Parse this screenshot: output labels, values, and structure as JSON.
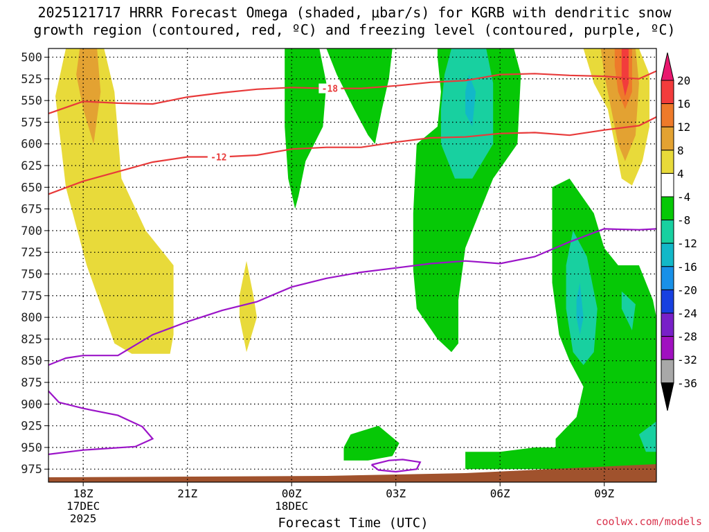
{
  "title": {
    "line1": "2025121717 HRRR Forecast Omega (shaded, μbar/s) for KGRB with dendritic snow",
    "line2": "growth region (contoured, red, ºC) and freezing level (contoured, purple, ºC)"
  },
  "credit": "coolwx.com/models",
  "chart_data": {
    "type": "heatmap",
    "xlabel": "Forecast Time (UTC)",
    "x_ticks": [
      {
        "hour": 1,
        "label": "18Z",
        "sub": [
          "17DEC",
          "2025"
        ]
      },
      {
        "hour": 4,
        "label": "21Z",
        "sub": []
      },
      {
        "hour": 7,
        "label": "00Z",
        "sub": [
          "18DEC"
        ]
      },
      {
        "hour": 10,
        "label": "03Z",
        "sub": []
      },
      {
        "hour": 13,
        "label": "06Z",
        "sub": []
      },
      {
        "hour": 16,
        "label": "09Z",
        "sub": []
      }
    ],
    "x_range_hours": [
      0,
      17.5
    ],
    "y_label": "",
    "y_axis": "pressure (hPa), inverted",
    "y_ticks": [
      500,
      525,
      550,
      575,
      600,
      625,
      650,
      675,
      700,
      725,
      750,
      775,
      800,
      825,
      850,
      875,
      900,
      925,
      950,
      975
    ],
    "y_range": [
      490,
      990
    ],
    "grid": "dotted",
    "colorbar": {
      "units": "μbar/s",
      "labels": [
        "20",
        "16",
        "12",
        "8",
        "4",
        "-4",
        "-8",
        "-12",
        "-16",
        "-20",
        "-24",
        "-28",
        "-32",
        "-36"
      ],
      "bins": [
        {
          "range": ">20",
          "color": "#e8186e"
        },
        {
          "range": "16 to 20",
          "color": "#f23c3c"
        },
        {
          "range": "12 to 16",
          "color": "#ee7a2a"
        },
        {
          "range": "8 to 12",
          "color": "#e3a232"
        },
        {
          "range": "4 to 8",
          "color": "#e8da3a"
        },
        {
          "range": "-4 to 4",
          "color": "#ffffff"
        },
        {
          "range": "-8 to -4",
          "color": "#06c806"
        },
        {
          "range": "-12 to -8",
          "color": "#18d0a0"
        },
        {
          "range": "-16 to -12",
          "color": "#12b8c8"
        },
        {
          "range": "-20 to -16",
          "color": "#1890e8"
        },
        {
          "range": "-24 to -20",
          "color": "#1840e0"
        },
        {
          "range": "-28 to -24",
          "color": "#7820c8"
        },
        {
          "range": "-32 to -28",
          "color": "#a010c0"
        },
        {
          "range": "-36 to -32",
          "color": "#a8a8a8"
        },
        {
          "range": "<-36",
          "color": "#000000"
        }
      ]
    },
    "dgz_contours": [
      {
        "label": "-18",
        "color": "#e83a3a",
        "label_hour": 8.1,
        "points": [
          [
            0,
            565
          ],
          [
            1,
            551
          ],
          [
            2,
            553
          ],
          [
            3,
            554
          ],
          [
            4,
            546
          ],
          [
            5,
            541
          ],
          [
            6,
            537
          ],
          [
            7,
            535
          ],
          [
            8,
            536
          ],
          [
            9,
            536
          ],
          [
            10,
            533
          ],
          [
            11,
            529
          ],
          [
            12,
            527
          ],
          [
            13,
            520
          ],
          [
            14,
            519
          ],
          [
            15,
            521
          ],
          [
            16,
            522
          ],
          [
            17,
            525
          ],
          [
            17.5,
            516
          ]
        ]
      },
      {
        "label": "-12",
        "color": "#e83a3a",
        "label_hour": 4.9,
        "points": [
          [
            0,
            658
          ],
          [
            1,
            643
          ],
          [
            2,
            632
          ],
          [
            3,
            621
          ],
          [
            4,
            615
          ],
          [
            5,
            615
          ],
          [
            6,
            613
          ],
          [
            7,
            606
          ],
          [
            8,
            604
          ],
          [
            9,
            604
          ],
          [
            10,
            598
          ],
          [
            11,
            593
          ],
          [
            12,
            592
          ],
          [
            13,
            588
          ],
          [
            14,
            587
          ],
          [
            15,
            590
          ],
          [
            16,
            584
          ],
          [
            17,
            579
          ],
          [
            17.5,
            569
          ]
        ]
      }
    ],
    "freezing_level_contours": [
      {
        "color": "#9b14c8",
        "points": [
          [
            0,
            855
          ],
          [
            0.5,
            847
          ],
          [
            1,
            844
          ],
          [
            2,
            844
          ],
          [
            3,
            820
          ],
          [
            4,
            805
          ],
          [
            5,
            792
          ],
          [
            6,
            782
          ],
          [
            7,
            765
          ],
          [
            8,
            755
          ],
          [
            9,
            748
          ],
          [
            10,
            743
          ],
          [
            11,
            738
          ],
          [
            12,
            735
          ],
          [
            13,
            738
          ],
          [
            14,
            730
          ],
          [
            15,
            713
          ],
          [
            16,
            698
          ],
          [
            17,
            699
          ],
          [
            17.5,
            698
          ]
        ]
      },
      {
        "color": "#9b14c8",
        "points": [
          [
            0,
            885
          ],
          [
            0.3,
            898
          ],
          [
            1,
            905
          ],
          [
            2,
            913
          ],
          [
            2.7,
            926
          ],
          [
            3,
            940
          ],
          [
            2.5,
            949
          ],
          [
            1,
            953
          ],
          [
            0,
            958
          ]
        ]
      },
      {
        "color": "#9b14c8",
        "points": [
          [
            9.3,
            970
          ],
          [
            9.8,
            965
          ],
          [
            10.2,
            964
          ],
          [
            10.7,
            967
          ],
          [
            10.6,
            975
          ],
          [
            10,
            978
          ],
          [
            9.5,
            976
          ],
          [
            9.3,
            970
          ]
        ]
      }
    ],
    "omega_regions": [
      {
        "bin": "4 to 8",
        "points": [
          [
            0.5,
            490
          ],
          [
            1.6,
            490
          ],
          [
            1.9,
            540
          ],
          [
            2.1,
            640
          ],
          [
            2.8,
            700
          ],
          [
            3.6,
            740
          ],
          [
            3.6,
            820
          ],
          [
            3.5,
            842
          ],
          [
            2.4,
            842
          ],
          [
            1.9,
            830
          ],
          [
            1.1,
            740
          ],
          [
            0.5,
            650
          ],
          [
            0.2,
            545
          ]
        ]
      },
      {
        "bin": "8 to 12",
        "points": [
          [
            0.9,
            490
          ],
          [
            1.4,
            490
          ],
          [
            1.5,
            540
          ],
          [
            1.3,
            600
          ],
          [
            1.0,
            560
          ],
          [
            0.8,
            520
          ]
        ]
      },
      {
        "bin": "4 to 8",
        "points": [
          [
            5.7,
            735
          ],
          [
            5.9,
            775
          ],
          [
            6.0,
            800
          ],
          [
            5.7,
            840
          ],
          [
            5.5,
            800
          ],
          [
            5.5,
            775
          ]
        ]
      },
      {
        "bin": "-8 to -4",
        "points": [
          [
            6.8,
            490
          ],
          [
            7.8,
            490
          ],
          [
            8.0,
            530
          ],
          [
            7.9,
            580
          ],
          [
            7.4,
            620
          ],
          [
            7.2,
            660
          ],
          [
            7.1,
            675
          ],
          [
            6.9,
            640
          ],
          [
            6.8,
            580
          ],
          [
            6.8,
            520
          ]
        ]
      },
      {
        "bin": "-8 to -4",
        "points": [
          [
            8.0,
            490
          ],
          [
            9.9,
            490
          ],
          [
            9.8,
            525
          ],
          [
            9.6,
            560
          ],
          [
            9.4,
            600
          ],
          [
            9.2,
            590
          ],
          [
            8.8,
            560
          ],
          [
            8.3,
            520
          ]
        ]
      },
      {
        "bin": "-8 to -4",
        "points": [
          [
            11.2,
            490
          ],
          [
            13.4,
            490
          ],
          [
            13.6,
            520
          ],
          [
            13.5,
            600
          ],
          [
            12.8,
            640
          ],
          [
            12.4,
            680
          ],
          [
            12.0,
            720
          ],
          [
            11.8,
            780
          ],
          [
            11.8,
            830
          ],
          [
            11.6,
            840
          ],
          [
            11.2,
            825
          ],
          [
            10.6,
            790
          ],
          [
            10.5,
            745
          ],
          [
            10.5,
            680
          ],
          [
            10.6,
            600
          ],
          [
            11.2,
            580
          ],
          [
            11.3,
            540
          ],
          [
            11.2,
            500
          ]
        ]
      },
      {
        "bin": "-12 to -8",
        "points": [
          [
            11.6,
            490
          ],
          [
            12.6,
            490
          ],
          [
            12.8,
            530
          ],
          [
            12.8,
            600
          ],
          [
            12.2,
            640
          ],
          [
            11.7,
            640
          ],
          [
            11.3,
            600
          ],
          [
            11.3,
            560
          ],
          [
            11.4,
            520
          ]
        ]
      },
      {
        "bin": "-16 to -12",
        "points": [
          [
            12.1,
            520
          ],
          [
            12.3,
            540
          ],
          [
            12.2,
            580
          ],
          [
            12.0,
            565
          ],
          [
            12.0,
            540
          ]
        ]
      },
      {
        "bin": "-8 to -4",
        "points": [
          [
            14.5,
            650
          ],
          [
            15.0,
            640
          ],
          [
            15.7,
            680
          ],
          [
            16.0,
            720
          ],
          [
            16.4,
            740
          ],
          [
            17.0,
            740
          ],
          [
            17.4,
            780
          ],
          [
            17.5,
            800
          ],
          [
            17.5,
            990
          ],
          [
            14.6,
            990
          ],
          [
            14.6,
            940
          ],
          [
            15.2,
            915
          ],
          [
            15.4,
            880
          ],
          [
            15.0,
            850
          ],
          [
            14.7,
            820
          ],
          [
            14.5,
            760
          ],
          [
            14.5,
            700
          ]
        ]
      },
      {
        "bin": "-12 to -8",
        "points": [
          [
            15.1,
            700
          ],
          [
            15.5,
            730
          ],
          [
            15.8,
            790
          ],
          [
            15.7,
            840
          ],
          [
            15.4,
            855
          ],
          [
            15.1,
            840
          ],
          [
            14.9,
            790
          ],
          [
            14.9,
            740
          ]
        ]
      },
      {
        "bin": "-16 to -12",
        "points": [
          [
            15.3,
            760
          ],
          [
            15.4,
            800
          ],
          [
            15.3,
            820
          ],
          [
            15.2,
            800
          ],
          [
            15.2,
            780
          ]
        ]
      },
      {
        "bin": "-12 to -8",
        "points": [
          [
            16.5,
            770
          ],
          [
            16.9,
            785
          ],
          [
            16.8,
            815
          ],
          [
            16.5,
            790
          ]
        ]
      },
      {
        "bin": "-12 to -8",
        "points": [
          [
            17.0,
            935
          ],
          [
            17.5,
            920
          ],
          [
            17.5,
            955
          ],
          [
            17.2,
            955
          ]
        ]
      },
      {
        "bin": "4 to 8",
        "points": [
          [
            15.4,
            490
          ],
          [
            17.0,
            490
          ],
          [
            17.3,
            520
          ],
          [
            17.3,
            580
          ],
          [
            17.1,
            620
          ],
          [
            16.8,
            648
          ],
          [
            16.5,
            640
          ],
          [
            16.3,
            600
          ],
          [
            16.1,
            560
          ],
          [
            15.7,
            530
          ]
        ]
      },
      {
        "bin": "8 to 12",
        "points": [
          [
            15.9,
            490
          ],
          [
            16.9,
            490
          ],
          [
            17.0,
            530
          ],
          [
            16.9,
            590
          ],
          [
            16.6,
            620
          ],
          [
            16.4,
            600
          ],
          [
            16.2,
            560
          ],
          [
            16.0,
            520
          ]
        ]
      },
      {
        "bin": "12 to 16",
        "points": [
          [
            16.3,
            490
          ],
          [
            16.8,
            490
          ],
          [
            16.8,
            540
          ],
          [
            16.6,
            560
          ],
          [
            16.4,
            540
          ],
          [
            16.3,
            510
          ]
        ]
      },
      {
        "bin": "16 to 20",
        "points": [
          [
            16.5,
            490
          ],
          [
            16.7,
            490
          ],
          [
            16.7,
            530
          ],
          [
            16.6,
            545
          ],
          [
            16.5,
            525
          ]
        ]
      },
      {
        "bin": "-8 to -4",
        "points": [
          [
            8.5,
            950
          ],
          [
            8.7,
            935
          ],
          [
            9.5,
            925
          ],
          [
            10.1,
            945
          ],
          [
            9.9,
            960
          ],
          [
            9.2,
            965
          ],
          [
            8.5,
            965
          ]
        ]
      },
      {
        "bin": "-8 to -4",
        "points": [
          [
            12.0,
            955
          ],
          [
            13.0,
            955
          ],
          [
            14.0,
            950
          ],
          [
            15.0,
            950
          ],
          [
            16.0,
            955
          ],
          [
            17.5,
            957
          ],
          [
            17.5,
            975
          ],
          [
            12.0,
            975
          ],
          [
            12.0,
            965
          ]
        ]
      }
    ]
  }
}
